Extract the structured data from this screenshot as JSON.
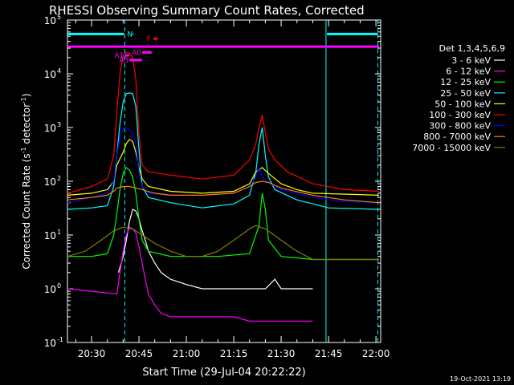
{
  "chart_data": {
    "type": "line",
    "title": "RHESSI Observing Summary Count Rates, Corrected",
    "xlabel": "Start Time (29-Jul-04 20:22:22)",
    "ylabel": "Corrected Count Rate (s",
    "ylabel_sup": "-1",
    "ylabel_tail": " detector",
    "ylabel_tail_sup": "-1",
    "ylabel_close": ")",
    "x_unit": "minutes since 20:00 UT",
    "xlim": [
      22.37,
      121.5
    ],
    "ylim": [
      0.1,
      100000
    ],
    "yscale": "log",
    "x_ticks": [
      {
        "value": 30,
        "label": "20:30"
      },
      {
        "value": 45,
        "label": "20:45"
      },
      {
        "value": 60,
        "label": "21:00"
      },
      {
        "value": 75,
        "label": "21:15"
      },
      {
        "value": 90,
        "label": "21:30"
      },
      {
        "value": 105,
        "label": "21:45"
      },
      {
        "value": 120,
        "label": "22:00"
      }
    ],
    "y_ticks": [
      {
        "value": 0.1,
        "label": "10",
        "exp": "-1"
      },
      {
        "value": 1,
        "label": "10",
        "exp": "0"
      },
      {
        "value": 10,
        "label": "10",
        "exp": "1"
      },
      {
        "value": 100,
        "label": "10",
        "exp": "2"
      },
      {
        "value": 1000,
        "label": "10",
        "exp": "3"
      },
      {
        "value": 10000,
        "label": "10",
        "exp": "4"
      },
      {
        "value": 100000,
        "label": "10",
        "exp": "5"
      }
    ],
    "legend_header": "Det 1,3,4,5,6,9",
    "legend_position": "right",
    "series": [
      {
        "name": "3 - 6 keV",
        "color": "#ffffff",
        "points": [
          [
            22.4,
            null
          ],
          [
            38.5,
            2
          ],
          [
            40,
            4
          ],
          [
            41,
            8
          ],
          [
            42,
            18
          ],
          [
            43,
            30
          ],
          [
            44,
            28
          ],
          [
            45,
            20
          ],
          [
            46,
            12
          ],
          [
            47,
            8
          ],
          [
            48,
            5
          ],
          [
            50,
            3
          ],
          [
            52,
            2
          ],
          [
            55,
            1.5
          ],
          [
            60,
            1.2
          ],
          [
            65,
            1
          ],
          [
            70,
            1
          ],
          [
            75,
            1
          ],
          [
            80,
            1
          ],
          [
            85,
            1
          ],
          [
            88,
            1.5
          ],
          [
            90,
            1
          ],
          [
            95,
            1
          ],
          [
            100,
            1
          ]
        ]
      },
      {
        "name": "6 - 12 keV",
        "color": "#ff00ff",
        "points": [
          [
            22.4,
            1
          ],
          [
            38,
            0.8
          ],
          [
            39,
            2
          ],
          [
            40,
            5
          ],
          [
            41,
            10
          ],
          [
            42,
            14
          ],
          [
            43,
            13
          ],
          [
            44,
            11
          ],
          [
            45,
            6
          ],
          [
            46,
            3
          ],
          [
            47,
            1.5
          ],
          [
            48,
            0.8
          ],
          [
            50,
            0.5
          ],
          [
            52,
            0.35
          ],
          [
            55,
            0.3
          ],
          [
            60,
            0.3
          ],
          [
            65,
            0.3
          ],
          [
            70,
            0.3
          ],
          [
            75,
            0.3
          ],
          [
            80,
            0.25
          ],
          [
            85,
            0.25
          ],
          [
            90,
            0.25
          ],
          [
            95,
            0.25
          ],
          [
            100,
            0.25
          ]
        ]
      },
      {
        "name": "12 - 25 keV",
        "color": "#00ff00",
        "points": [
          [
            22.4,
            4
          ],
          [
            30,
            4
          ],
          [
            35,
            4.5
          ],
          [
            37,
            10
          ],
          [
            38,
            25
          ],
          [
            39,
            70
          ],
          [
            40,
            140
          ],
          [
            41,
            180
          ],
          [
            42,
            160
          ],
          [
            43,
            120
          ],
          [
            44,
            60
          ],
          [
            45,
            20
          ],
          [
            46,
            8
          ],
          [
            48,
            5
          ],
          [
            55,
            4
          ],
          [
            70,
            4
          ],
          [
            80,
            4.5
          ],
          [
            83,
            15
          ],
          [
            84,
            60
          ],
          [
            85,
            30
          ],
          [
            86,
            8
          ],
          [
            90,
            4
          ],
          [
            100,
            3.5
          ],
          [
            121,
            3.5
          ]
        ]
      },
      {
        "name": "25 - 50 keV",
        "color": "#00ffff",
        "points": [
          [
            22.4,
            30
          ],
          [
            30,
            32
          ],
          [
            35,
            35
          ],
          [
            37,
            80
          ],
          [
            38,
            300
          ],
          [
            39,
            1200
          ],
          [
            40,
            3000
          ],
          [
            41,
            4300
          ],
          [
            42,
            4400
          ],
          [
            43,
            4300
          ],
          [
            44,
            2500
          ],
          [
            45,
            400
          ],
          [
            46,
            80
          ],
          [
            48,
            50
          ],
          [
            55,
            40
          ],
          [
            65,
            32
          ],
          [
            75,
            38
          ],
          [
            80,
            55
          ],
          [
            82,
            150
          ],
          [
            83,
            500
          ],
          [
            84,
            1000
          ],
          [
            85,
            300
          ],
          [
            86,
            120
          ],
          [
            88,
            70
          ],
          [
            95,
            45
          ],
          [
            100,
            38
          ],
          [
            105,
            32
          ],
          [
            121,
            30
          ]
        ]
      },
      {
        "name": "50 - 100 keV",
        "color": "#ffff00",
        "points": [
          [
            22.4,
            55
          ],
          [
            30,
            60
          ],
          [
            35,
            70
          ],
          [
            37,
            100
          ],
          [
            38,
            200
          ],
          [
            40,
            350
          ],
          [
            41,
            500
          ],
          [
            42,
            600
          ],
          [
            43,
            550
          ],
          [
            44,
            350
          ],
          [
            45,
            180
          ],
          [
            46,
            110
          ],
          [
            48,
            80
          ],
          [
            55,
            65
          ],
          [
            65,
            60
          ],
          [
            75,
            65
          ],
          [
            80,
            90
          ],
          [
            82,
            150
          ],
          [
            84,
            180
          ],
          [
            86,
            140
          ],
          [
            90,
            90
          ],
          [
            95,
            70
          ],
          [
            100,
            60
          ],
          [
            121,
            55
          ]
        ]
      },
      {
        "name": "100 - 300 keV",
        "color": "#ff0000",
        "points": [
          [
            22.4,
            60
          ],
          [
            30,
            80
          ],
          [
            35,
            110
          ],
          [
            37,
            300
          ],
          [
            38,
            2000
          ],
          [
            39,
            10000
          ],
          [
            40,
            22000
          ],
          [
            41,
            25000
          ],
          [
            42,
            24000
          ],
          [
            43,
            20000
          ],
          [
            44,
            8000
          ],
          [
            45,
            800
          ],
          [
            46,
            200
          ],
          [
            48,
            150
          ],
          [
            55,
            130
          ],
          [
            65,
            110
          ],
          [
            75,
            130
          ],
          [
            80,
            250
          ],
          [
            82,
            500
          ],
          [
            83,
            1000
          ],
          [
            84,
            1700
          ],
          [
            85,
            800
          ],
          [
            86,
            400
          ],
          [
            88,
            250
          ],
          [
            92,
            150
          ],
          [
            100,
            90
          ],
          [
            110,
            70
          ],
          [
            121,
            65
          ]
        ]
      },
      {
        "name": "300 - 800 keV",
        "color": "#0000ff",
        "points": [
          [
            22.4,
            40
          ],
          [
            30,
            50
          ],
          [
            35,
            60
          ],
          [
            37,
            100
          ],
          [
            38,
            300
          ],
          [
            39,
            700
          ],
          [
            40,
            950
          ],
          [
            41,
            1000
          ],
          [
            42,
            900
          ],
          [
            43,
            800
          ],
          [
            44,
            500
          ],
          [
            45,
            150
          ],
          [
            46,
            80
          ],
          [
            48,
            60
          ],
          [
            55,
            55
          ],
          [
            65,
            55
          ],
          [
            75,
            60
          ],
          [
            80,
            80
          ],
          [
            82,
            120
          ],
          [
            83,
            180
          ],
          [
            84,
            120
          ],
          [
            86,
            95
          ],
          [
            90,
            70
          ],
          [
            100,
            50
          ],
          [
            110,
            42
          ],
          [
            121,
            40
          ]
        ]
      },
      {
        "name": "800 - 7000 keV",
        "color": "#ff8000",
        "points": [
          [
            22.4,
            45
          ],
          [
            30,
            50
          ],
          [
            35,
            55
          ],
          [
            37,
            65
          ],
          [
            38,
            75
          ],
          [
            40,
            80
          ],
          [
            42,
            80
          ],
          [
            44,
            75
          ],
          [
            46,
            70
          ],
          [
            50,
            60
          ],
          [
            55,
            55
          ],
          [
            65,
            55
          ],
          [
            75,
            60
          ],
          [
            80,
            80
          ],
          [
            82,
            95
          ],
          [
            84,
            100
          ],
          [
            86,
            95
          ],
          [
            90,
            75
          ],
          [
            100,
            55
          ],
          [
            110,
            45
          ],
          [
            121,
            40
          ]
        ]
      },
      {
        "name": "7000 - 15000 keV",
        "color": "#808000",
        "points": [
          [
            22.4,
            4
          ],
          [
            28,
            5
          ],
          [
            33,
            8
          ],
          [
            37,
            12
          ],
          [
            40,
            14
          ],
          [
            43,
            13
          ],
          [
            46,
            10
          ],
          [
            50,
            7
          ],
          [
            55,
            5
          ],
          [
            60,
            4
          ],
          [
            65,
            4
          ],
          [
            70,
            5
          ],
          [
            75,
            8
          ],
          [
            80,
            13
          ],
          [
            82,
            15
          ],
          [
            85,
            13
          ],
          [
            90,
            8
          ],
          [
            95,
            5
          ],
          [
            100,
            3.5
          ],
          [
            110,
            3.5
          ],
          [
            121,
            3.5
          ]
        ]
      }
    ],
    "flag_bars": [
      {
        "label": "N",
        "color": "#00ffff",
        "y": 55000,
        "segments": [
          [
            22.4,
            40.3
          ],
          [
            43,
            43.2
          ],
          [
            104.5,
            120.6
          ]
        ]
      },
      {
        "label": "",
        "color": "#ff00ff",
        "y": 32000,
        "segments": [
          [
            22.4,
            121
          ]
        ]
      },
      {
        "label": "F",
        "color": "#ff0000",
        "y": 45000,
        "segments": [
          [
            49.5,
            51
          ]
        ]
      },
      {
        "label": "A0",
        "color": "#ff00ff",
        "y": 25000,
        "segments": [
          [
            46,
            49
          ]
        ]
      },
      {
        "label": "A1",
        "color": "#ff00ff",
        "y": 22000,
        "segments": [
          [
            40.5,
            42
          ]
        ]
      },
      {
        "label": "A3",
        "color": "#ff00ff",
        "y": 18000,
        "segments": [
          [
            42,
            46
          ]
        ]
      }
    ],
    "vlines": [
      {
        "x": 40.5,
        "color": "#00ffff",
        "style": "dashed"
      },
      {
        "x": 104.2,
        "color": "#00ffff",
        "style": "solid"
      },
      {
        "x": 120.6,
        "color": "#00ffff",
        "style": "dashed"
      }
    ]
  },
  "footer": {
    "date_stamp": "19-Oct-2021 13:19"
  }
}
